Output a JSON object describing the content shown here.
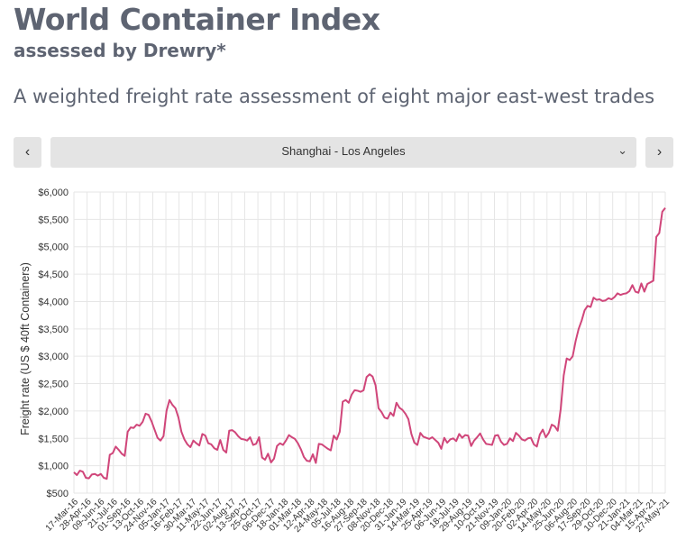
{
  "header": {
    "title": "World Container Index",
    "subtitle": "assessed by Drewry*",
    "description": "A weighted freight rate assessment of eight major east-west trades"
  },
  "controls": {
    "prev_label": "‹",
    "next_label": "›",
    "route_selected": "Shanghai - Los Angeles",
    "caret": "⌄"
  },
  "colors": {
    "line": "#d0467a",
    "grid": "#e6e6e6"
  },
  "chart_data": {
    "type": "line",
    "title": "",
    "xlabel": "",
    "ylabel": "Freight rate (US $ 40ft Containers)",
    "ylim": [
      500,
      6000
    ],
    "yticks": [
      500,
      1000,
      1500,
      2000,
      2500,
      3000,
      3500,
      4000,
      4500,
      5000,
      5500,
      6000
    ],
    "ytick_labels": [
      "$500",
      "$1,000",
      "$1,500",
      "$2,000",
      "$2,500",
      "$3,000",
      "$3,500",
      "$4,000",
      "$4,500",
      "$5,000",
      "$5,500",
      "$6,000"
    ],
    "xtick_labels": [
      "17-Mar-16",
      "28-Apr-16",
      "09-Jun-16",
      "21-Jul-16",
      "01-Sep-16",
      "13-Oct-16",
      "24-Nov-16",
      "05-Jan-17",
      "16-Feb-17",
      "30-Mar-17",
      "11-May-17",
      "22-Jun-17",
      "02-Aug-17",
      "13-Sep-17",
      "25-Oct-17",
      "06-Dec-17",
      "18-Jan-18",
      "01-Mar-18",
      "12-Apr-18",
      "24-May-18",
      "05-Jul-18",
      "16-Aug-18",
      "27-Sep-18",
      "08-Nov-18",
      "20-Dec-18",
      "31-Jan-19",
      "14-Mar-19",
      "25-Apr-19",
      "06-Jun-19",
      "18-Jul-19",
      "29-Aug-19",
      "10-Oct-19",
      "21-Nov-19",
      "09-Jan-20",
      "20-Feb-20",
      "02-Apr-20",
      "14-May-20",
      "25-Jun-20",
      "06-Aug-20",
      "17-Sep-20",
      "29-Oct-20",
      "10-Dec-20",
      "21-Jan-21",
      "04-Mar-21",
      "15-Apr-21",
      "27-May-21"
    ],
    "series": [
      {
        "name": "Shanghai - Los Angeles",
        "values": [
          880,
          830,
          910,
          890,
          780,
          770,
          840,
          850,
          820,
          850,
          780,
          760,
          1200,
          1230,
          1350,
          1290,
          1220,
          1180,
          1620,
          1700,
          1690,
          1750,
          1730,
          1800,
          1950,
          1930,
          1810,
          1660,
          1510,
          1460,
          1540,
          2000,
          2200,
          2110,
          2050,
          1880,
          1620,
          1480,
          1390,
          1340,
          1460,
          1410,
          1370,
          1580,
          1550,
          1410,
          1390,
          1320,
          1290,
          1470,
          1290,
          1240,
          1640,
          1650,
          1610,
          1540,
          1490,
          1480,
          1460,
          1520,
          1380,
          1400,
          1520,
          1150,
          1110,
          1220,
          1060,
          1130,
          1360,
          1410,
          1380,
          1460,
          1560,
          1520,
          1490,
          1410,
          1300,
          1160,
          1090,
          1080,
          1210,
          1050,
          1400,
          1390,
          1350,
          1310,
          1280,
          1550,
          1480,
          1620,
          2170,
          2200,
          2150,
          2300,
          2380,
          2370,
          2350,
          2380,
          2620,
          2670,
          2630,
          2470,
          2050,
          1980,
          1880,
          1860,
          1970,
          1910,
          2150,
          2060,
          2020,
          1950,
          1850,
          1580,
          1420,
          1380,
          1600,
          1530,
          1510,
          1490,
          1520,
          1470,
          1420,
          1310,
          1510,
          1420,
          1480,
          1500,
          1450,
          1580,
          1510,
          1560,
          1550,
          1360,
          1460,
          1520,
          1590,
          1480,
          1400,
          1390,
          1380,
          1550,
          1560,
          1440,
          1380,
          1400,
          1500,
          1450,
          1600,
          1550,
          1480,
          1460,
          1500,
          1510,
          1390,
          1350,
          1570,
          1660,
          1520,
          1600,
          1750,
          1720,
          1640,
          2040,
          2650,
          2960,
          2930,
          3000,
          3280,
          3500,
          3650,
          3840,
          3920,
          3900,
          4070,
          4030,
          4040,
          4010,
          4020,
          4060,
          4040,
          4080,
          4150,
          4120,
          4140,
          4150,
          4190,
          4300,
          4180,
          4160,
          4330,
          4180,
          4320,
          4350,
          4380,
          5180,
          5250,
          5640,
          5710
        ]
      }
    ]
  }
}
